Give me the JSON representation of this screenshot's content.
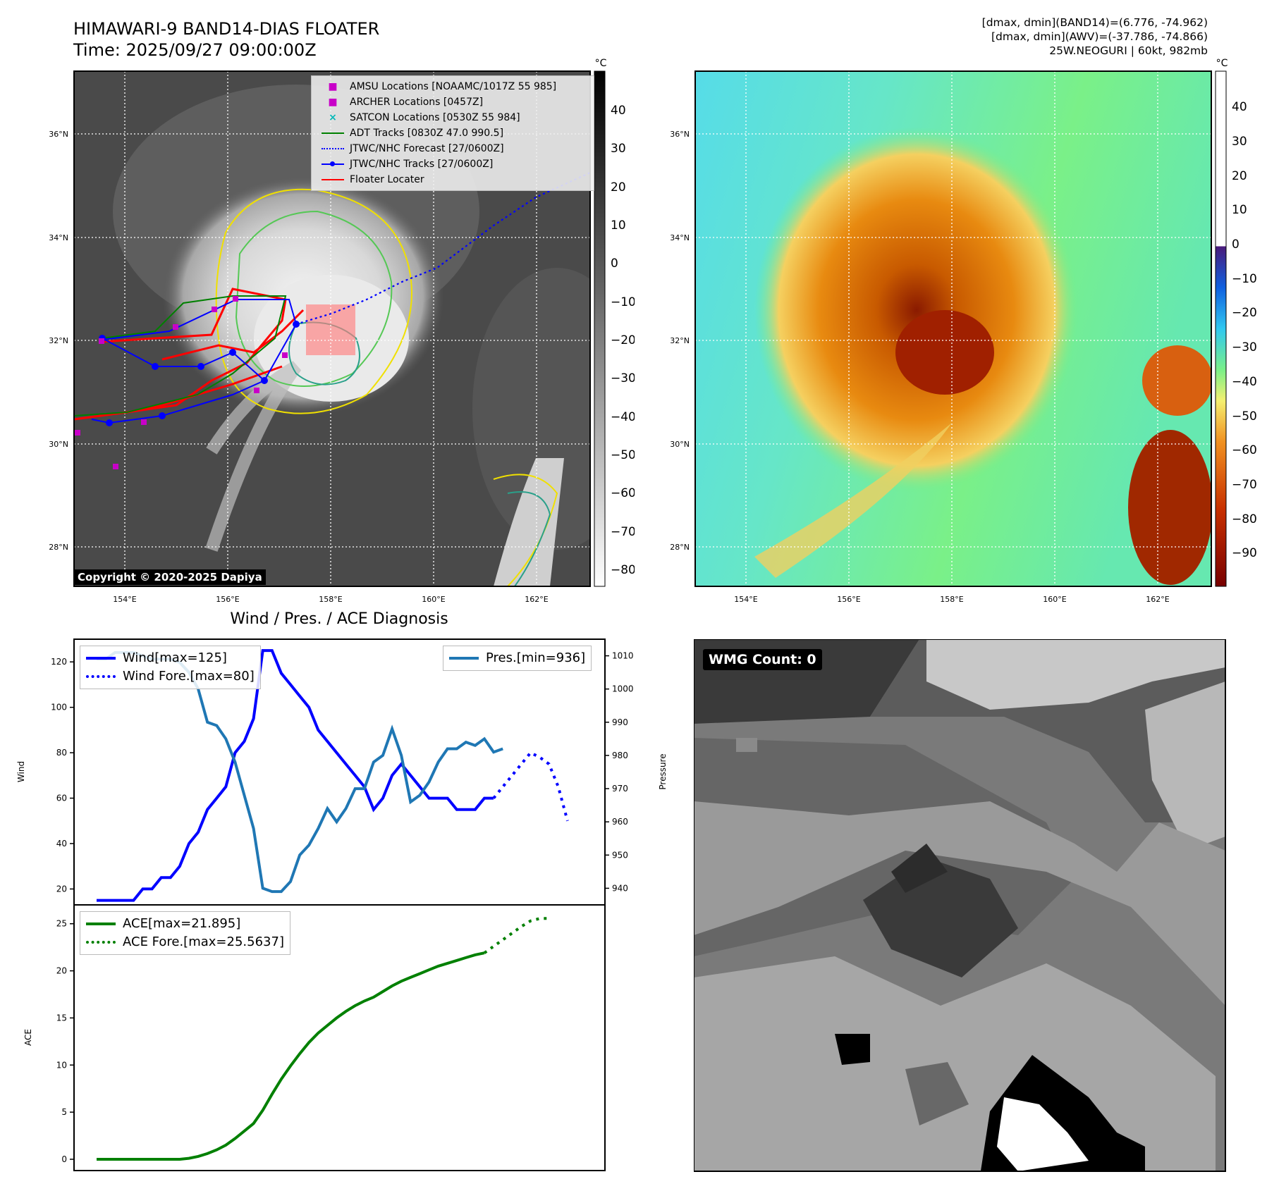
{
  "header": {
    "title_line1": "HIMAWARI-9 BAND14-DIAS FLOATER",
    "title_line2": "Time: 2025/09/27 09:00:00Z",
    "meta_line1": "[dmax, dmin](BAND14)=(6.776, -74.962)",
    "meta_line2": "[dmax, dmin](AWV)=(-37.786, -74.866)",
    "meta_line3": "25W.NEOGURI | 60kt, 982mb"
  },
  "colorbar_unit": "°C",
  "colorbar_ticks_left": [
    "40",
    "30",
    "20",
    "10",
    "0",
    "−10",
    "−20",
    "−30",
    "−40",
    "−50",
    "−60",
    "−70",
    "−80"
  ],
  "colorbar_ticks_right": [
    "40",
    "30",
    "20",
    "10",
    "0",
    "−10",
    "−20",
    "−30",
    "−40",
    "−50",
    "−60",
    "−70",
    "−80",
    "−90"
  ],
  "map": {
    "lat_labels": [
      "36°N",
      "34°N",
      "32°N",
      "30°N",
      "28°N"
    ],
    "lon_labels": [
      "154°E",
      "156°E",
      "158°E",
      "160°E",
      "162°E"
    ],
    "copyright": "Copyright © 2020-2025 Dapiya",
    "legend": [
      {
        "label": "AMSU Locations [NOAAMC/1017Z 55 985]",
        "marker": "square",
        "color": "#c800c8"
      },
      {
        "label": "ARCHER Locations [0457Z]",
        "marker": "square",
        "color": "#c800c8"
      },
      {
        "label": "SATCON Locations [0530Z 55 984]",
        "marker": "x",
        "color": "#00b8b8"
      },
      {
        "label": "ADT Tracks [0830Z 47.0 990.5]",
        "marker": "line",
        "color": "#008000"
      },
      {
        "label": "JTWC/NHC Forecast [27/0600Z]",
        "marker": "dotted",
        "color": "#0000ff"
      },
      {
        "label": "JTWC/NHC Tracks [27/0600Z]",
        "marker": "line-dot",
        "color": "#0000ff"
      },
      {
        "label": "Floater Locater",
        "marker": "line",
        "color": "#ff0000"
      }
    ]
  },
  "diag_title": "Wind / Pres. / ACE Diagnosis",
  "wmg_label": "WMG Count: 0",
  "chart_data": [
    {
      "type": "line",
      "title": "",
      "ylabel": "Wind",
      "y2label": "Pressure",
      "ylim": [
        13,
        130
      ],
      "y2lim": [
        935,
        1015
      ],
      "yticks": [
        20,
        40,
        60,
        80,
        100,
        120
      ],
      "y2ticks": [
        940,
        950,
        960,
        970,
        980,
        990,
        1000,
        1010
      ],
      "legend_left": [
        "Wind[max=125]",
        "Wind Fore.[max=80]"
      ],
      "legend_right": [
        "Pres.[min=936]"
      ],
      "series": [
        {
          "name": "Wind[max=125]",
          "axis": "left",
          "color": "#0000ff",
          "style": "solid",
          "values": [
            15,
            15,
            15,
            15,
            15,
            20,
            20,
            25,
            25,
            30,
            40,
            45,
            55,
            60,
            65,
            80,
            85,
            95,
            125,
            125,
            115,
            110,
            105,
            100,
            90,
            85,
            80,
            75,
            70,
            65,
            55,
            60,
            70,
            75,
            70,
            65,
            60,
            60,
            60,
            55,
            55,
            55,
            60,
            60
          ]
        },
        {
          "name": "Wind Fore.[max=80]",
          "axis": "left",
          "color": "#0000ff",
          "style": "dotted",
          "x_start": 43,
          "values": [
            60,
            65,
            70,
            75,
            80,
            78,
            75,
            65,
            50
          ]
        },
        {
          "name": "Pres.[min=936]",
          "axis": "right",
          "color": "#1f77b4",
          "style": "solid",
          "values": [
            1009,
            1009,
            1011,
            1011,
            1011,
            1010,
            1009,
            1009,
            1009,
            1008,
            1005,
            1000,
            990,
            989,
            985,
            978,
            968,
            958,
            940,
            939,
            939,
            942,
            950,
            953,
            958,
            964,
            960,
            964,
            970,
            970,
            978,
            980,
            988,
            980,
            966,
            968,
            972,
            978,
            982,
            982,
            984,
            983,
            985,
            981,
            982
          ]
        }
      ],
      "x_count": 53
    },
    {
      "type": "line",
      "title": "",
      "ylabel": "ACE",
      "ylim": [
        -1.2,
        27
      ],
      "yticks": [
        0,
        5,
        10,
        15,
        20,
        25
      ],
      "legend": [
        "ACE[max=21.895]",
        "ACE Fore.[max=25.5637]"
      ],
      "series": [
        {
          "name": "ACE[max=21.895]",
          "color": "#008000",
          "style": "solid",
          "values": [
            0,
            0,
            0,
            0,
            0,
            0,
            0,
            0,
            0,
            0,
            0.1,
            0.3,
            0.6,
            1.0,
            1.5,
            2.2,
            3.0,
            3.8,
            5.2,
            6.9,
            8.5,
            9.9,
            11.2,
            12.4,
            13.4,
            14.2,
            15.0,
            15.7,
            16.3,
            16.8,
            17.2,
            17.8,
            18.4,
            18.9,
            19.3,
            19.7,
            20.1,
            20.5,
            20.8,
            21.1,
            21.4,
            21.7,
            21.9
          ]
        },
        {
          "name": "ACE Fore.[max=25.5637]",
          "color": "#008000",
          "style": "dotted",
          "x_start": 42,
          "values": [
            21.9,
            22.6,
            23.3,
            24.0,
            24.7,
            25.3,
            25.56,
            25.56
          ]
        }
      ],
      "x_count": 53
    }
  ]
}
